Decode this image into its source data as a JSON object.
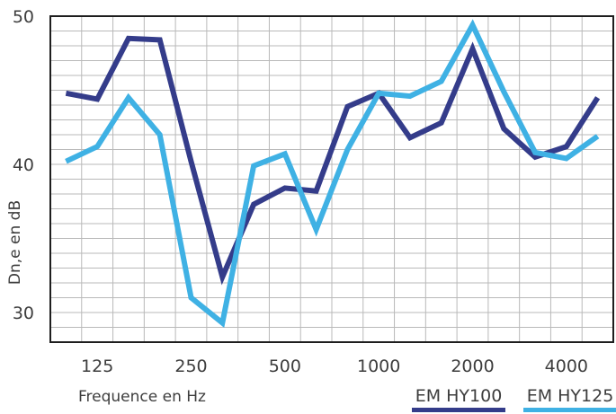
{
  "chart_data": {
    "type": "line",
    "title": "",
    "xlabel": "Frequence en Hz",
    "ylabel": "Dn,e en dB",
    "x": [
      100,
      125,
      160,
      200,
      250,
      315,
      400,
      500,
      630,
      800,
      1000,
      1250,
      1600,
      2000,
      2500,
      3150,
      4000,
      5000
    ],
    "x_tick_labels": [
      {
        "label": "125",
        "index": 1
      },
      {
        "label": "250",
        "index": 4
      },
      {
        "label": "500",
        "index": 7
      },
      {
        "label": "1000",
        "index": 10
      },
      {
        "label": "2000",
        "index": 13
      },
      {
        "label": "4000",
        "index": 16
      }
    ],
    "y_ticks": [
      30,
      40,
      50
    ],
    "ylim": [
      28,
      50
    ],
    "grid": true,
    "legend_position": "bottom-right",
    "series": [
      {
        "name": "EM HY100",
        "color": "#343c8a",
        "values": [
          44.8,
          44.4,
          48.5,
          48.4,
          40.2,
          32.4,
          37.3,
          38.4,
          38.2,
          43.9,
          44.8,
          41.8,
          42.8,
          47.8,
          42.4,
          40.5,
          41.2,
          44.5
        ]
      },
      {
        "name": "EM HY125",
        "color": "#3fb1e4",
        "values": [
          40.2,
          41.2,
          44.5,
          42.0,
          31.0,
          29.3,
          39.9,
          40.7,
          35.6,
          41.0,
          44.8,
          44.6,
          45.6,
          49.4,
          44.9,
          40.8,
          40.4,
          41.9
        ]
      }
    ]
  }
}
